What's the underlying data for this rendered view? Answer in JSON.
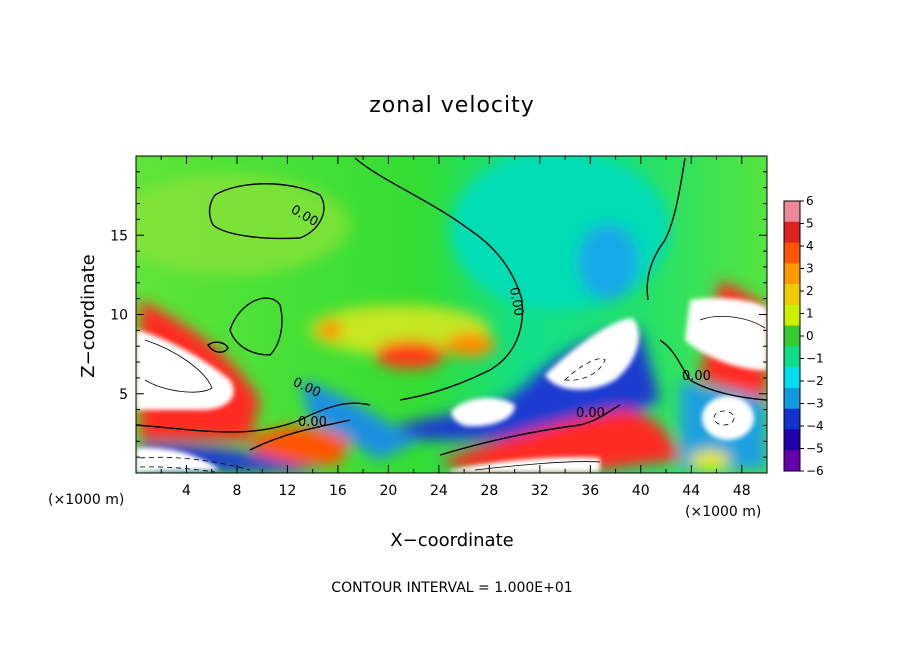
{
  "chart_data": {
    "type": "heatmap",
    "title": "zonal velocity",
    "xlabel": "X−coordinate",
    "ylabel": "Z−coordinate",
    "x_unit_label": "(×1000 m)",
    "x_unit_label_right": "(×1000 m)",
    "xlim": [
      0,
      50
    ],
    "ylim": [
      0,
      20
    ],
    "xticks": [
      4,
      8,
      12,
      16,
      20,
      24,
      28,
      32,
      36,
      40,
      44,
      48
    ],
    "yticks": [
      5,
      10,
      15
    ],
    "colorbar": {
      "ticks": [
        "6",
        "5",
        "4",
        "3",
        "2",
        "1",
        "0",
        "−1",
        "−2",
        "−3",
        "−4",
        "−5",
        "−6"
      ],
      "range": [
        -6,
        6
      ],
      "colors": [
        "#ee8899",
        "#dd2222",
        "#ff5500",
        "#ff9900",
        "#eecc00",
        "#ccee00",
        "#33cc33",
        "#11dd88",
        "#00ddee",
        "#1199dd",
        "#1133cc",
        "#2200aa",
        "#6600aa"
      ]
    },
    "contour_labels": [
      "0.00",
      "0.00",
      "0.00",
      "0.00",
      "0.00",
      "0.00"
    ],
    "footer": "CONTOUR INTERVAL = 1.000E+01",
    "features": [
      {
        "x": 22,
        "z": 7.5,
        "value": 4
      },
      {
        "x": 3,
        "z": 6,
        "value": 8
      },
      {
        "x": 34,
        "z": 6,
        "value": -8
      },
      {
        "x": 38,
        "z": 8.5,
        "value": -8
      },
      {
        "x": 47,
        "z": 8.5,
        "value": 8
      },
      {
        "x": 46,
        "z": 3.5,
        "value": -8
      },
      {
        "x": 36,
        "z": 14,
        "value": -3
      },
      {
        "x": 27,
        "z": 4,
        "value": -7
      },
      {
        "x": 36,
        "z": 2,
        "value": 4
      },
      {
        "x": 14,
        "z": 2,
        "value": 4
      },
      {
        "x": 7,
        "z": 4.5,
        "value": 5
      },
      {
        "x": 3,
        "z": 1,
        "value": -6
      },
      {
        "x": 46,
        "z": 0.6,
        "value": 2
      }
    ]
  }
}
